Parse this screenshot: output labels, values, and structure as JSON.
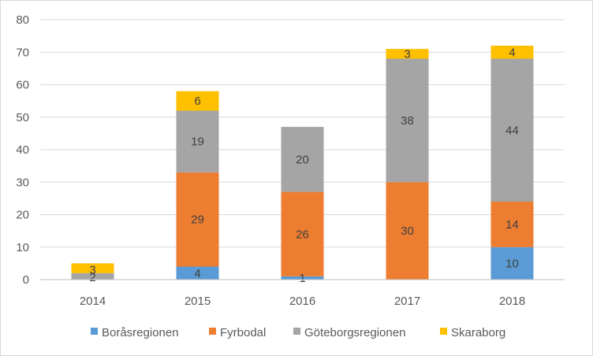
{
  "chart_data": {
    "type": "bar",
    "stacked": true,
    "title": "",
    "xlabel": "",
    "ylabel": "",
    "categories": [
      "2014",
      "2015",
      "2016",
      "2017",
      "2018"
    ],
    "ylim": [
      0,
      80
    ],
    "yticks": [
      0,
      10,
      20,
      30,
      40,
      50,
      60,
      70,
      80
    ],
    "grid": true,
    "legend": "bottom",
    "series": [
      {
        "name": "Boråsregionen",
        "color": "#5b9bd5",
        "values": [
          0,
          4,
          1,
          0,
          10
        ],
        "labels": [
          "",
          "4",
          "1",
          "",
          "10"
        ]
      },
      {
        "name": "Fyrbodal",
        "color": "#ed7d31",
        "values": [
          0,
          29,
          26,
          30,
          14
        ],
        "labels": [
          "",
          "29",
          "26",
          "30",
          "14"
        ]
      },
      {
        "name": "Göteborgsregionen",
        "color": "#a5a5a5",
        "values": [
          2,
          19,
          20,
          38,
          44
        ],
        "labels": [
          "2",
          "19",
          "20",
          "38",
          "44"
        ]
      },
      {
        "name": "Skaraborg",
        "color": "#ffc000",
        "values": [
          3,
          6,
          0,
          3,
          4
        ],
        "labels": [
          "3",
          "6",
          "",
          "3",
          "4"
        ]
      }
    ]
  }
}
